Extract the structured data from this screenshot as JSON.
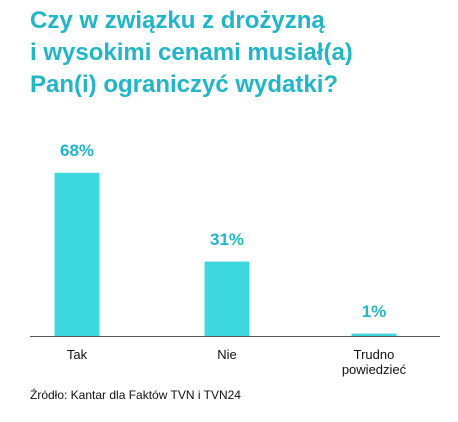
{
  "chart_data": {
    "type": "bar",
    "title": [
      "Czy w związku z drożyzną",
      "i wysokimi cenami musiał(a)",
      "Pan(i) ograniczyć wydatki?"
    ],
    "categories": [
      "Tak",
      "Nie",
      "Trudno powiedzieć"
    ],
    "values": [
      68,
      31,
      1
    ],
    "value_labels": [
      "68%",
      "31%",
      "1%"
    ],
    "color": "#3dd8df",
    "source": "Źródło: Kantar dla Faktów TVN i TVN24"
  }
}
